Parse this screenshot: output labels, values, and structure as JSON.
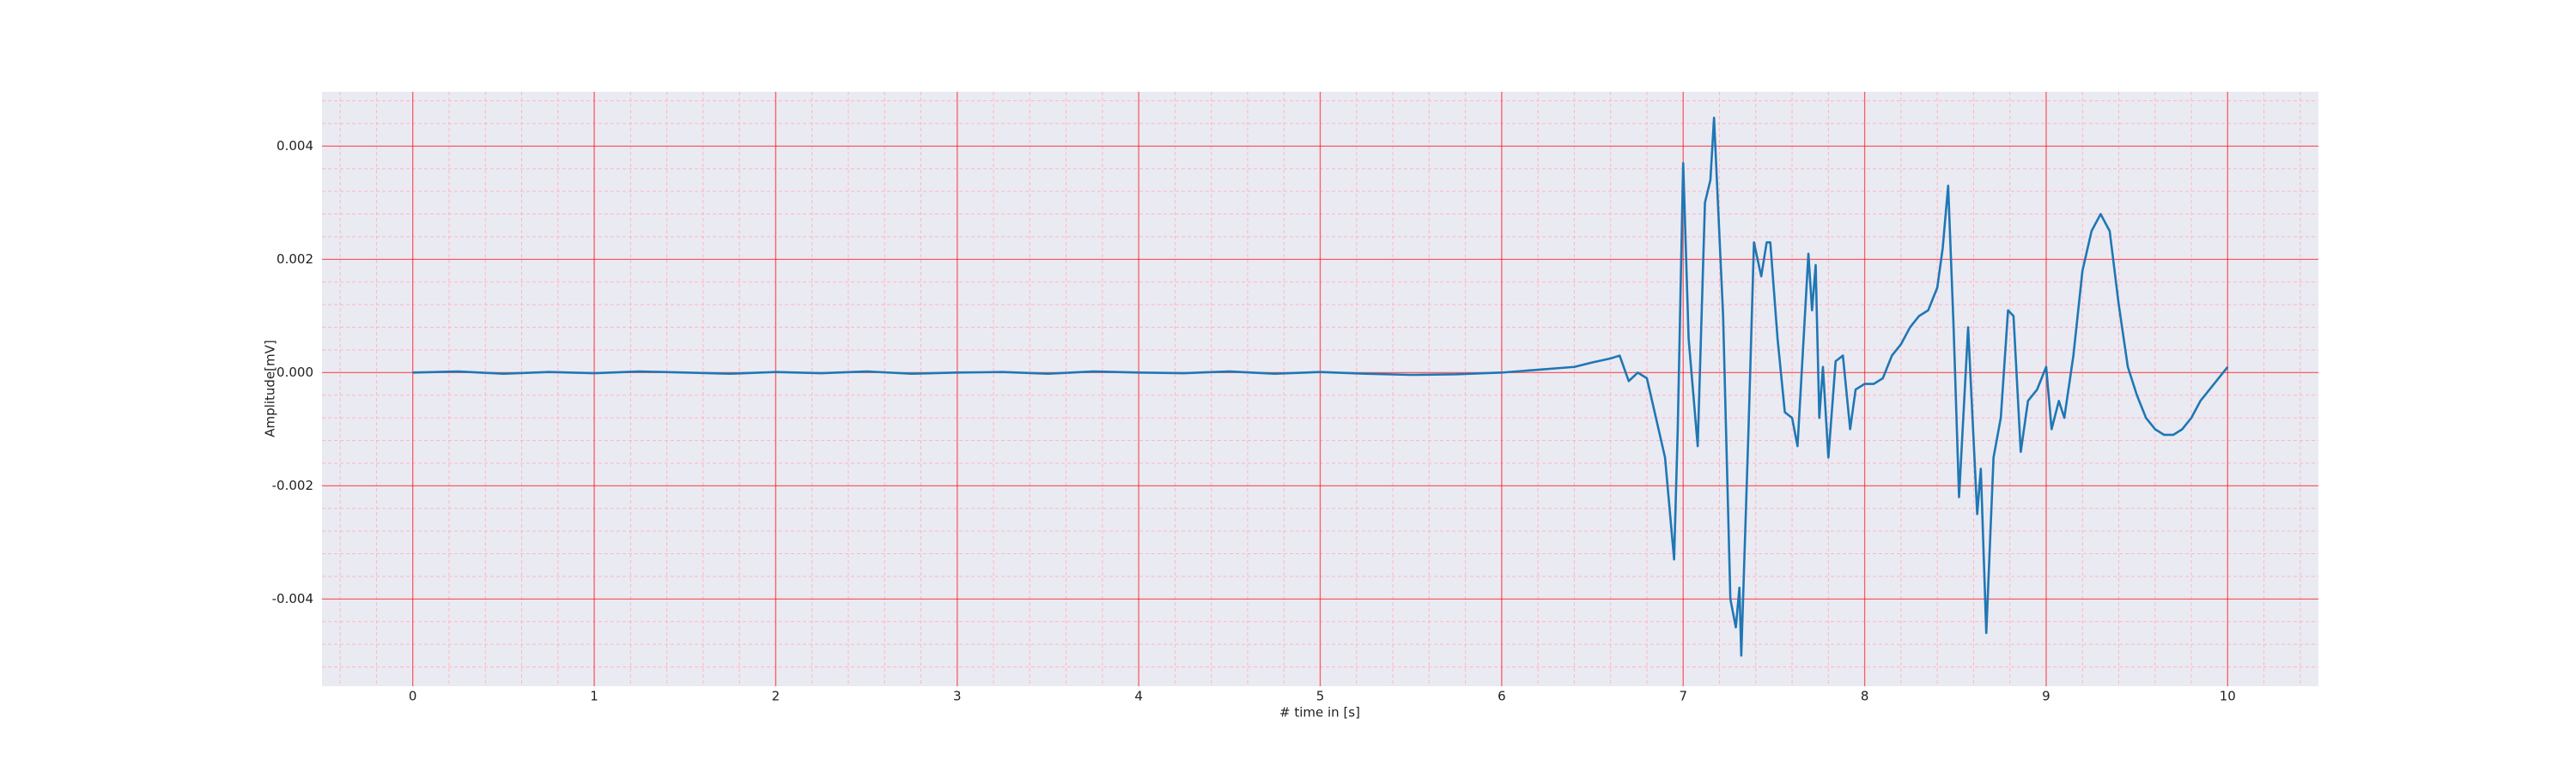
{
  "chart_data": {
    "type": "line",
    "xlabel": "# time in [s]",
    "ylabel": "Amplitude[mV]",
    "x": [
      0,
      0.25,
      0.5,
      0.75,
      1,
      1.25,
      1.5,
      1.75,
      2,
      2.25,
      2.5,
      2.75,
      3,
      3.25,
      3.5,
      3.75,
      4,
      4.25,
      4.5,
      4.75,
      5,
      5.25,
      5.5,
      5.75,
      6,
      6.2,
      6.4,
      6.5,
      6.6,
      6.65,
      6.7,
      6.75,
      6.8,
      6.85,
      6.9,
      6.95,
      6.97,
      7.0,
      7.03,
      7.08,
      7.12,
      7.15,
      7.17,
      7.22,
      7.26,
      7.29,
      7.31,
      7.32,
      7.36,
      7.39,
      7.43,
      7.46,
      7.48,
      7.52,
      7.56,
      7.6,
      7.63,
      7.69,
      7.71,
      7.73,
      7.75,
      7.77,
      7.8,
      7.84,
      7.88,
      7.92,
      7.95,
      8.0,
      8.05,
      8.1,
      8.15,
      8.2,
      8.25,
      8.3,
      8.35,
      8.4,
      8.43,
      8.46,
      8.49,
      8.52,
      8.57,
      8.62,
      8.64,
      8.67,
      8.71,
      8.75,
      8.79,
      8.82,
      8.86,
      8.9,
      8.95,
      9.0,
      9.03,
      9.07,
      9.1,
      9.15,
      9.2,
      9.25,
      9.3,
      9.35,
      9.4,
      9.45,
      9.5,
      9.55,
      9.6,
      9.65,
      9.7,
      9.75,
      9.8,
      9.85,
      9.9,
      9.95,
      10.0
    ],
    "series": [
      {
        "color": "#1f77b4",
        "values": [
          0,
          2e-05,
          -2e-05,
          1e-05,
          -1e-05,
          2e-05,
          0,
          -2e-05,
          1e-05,
          -1e-05,
          2e-05,
          -2e-05,
          0,
          1e-05,
          -2e-05,
          2e-05,
          0,
          -1e-05,
          2e-05,
          -2e-05,
          1e-05,
          -2e-05,
          -4e-05,
          -3e-05,
          0,
          5e-05,
          0.0001,
          0.00018,
          0.00025,
          0.0003,
          -0.00015,
          0,
          -0.0001,
          -0.0008,
          -0.0015,
          -0.0033,
          -0.001,
          0.0037,
          0.0006,
          -0.0013,
          0.003,
          0.0034,
          0.0045,
          0.001,
          -0.004,
          -0.0045,
          -0.0038,
          -0.005,
          -0.001,
          0.0023,
          0.0017,
          0.0023,
          0.0023,
          0.0006,
          -0.0007,
          -0.0008,
          -0.0013,
          0.0021,
          0.0011,
          0.0019,
          -0.0008,
          0.0001,
          -0.0015,
          0.0002,
          0.0003,
          -0.001,
          -0.0003,
          -0.0002,
          -0.0002,
          -0.0001,
          0.0003,
          0.0005,
          0.0008,
          0.001,
          0.0011,
          0.0015,
          0.0022,
          0.0033,
          0.0008,
          -0.0022,
          0.0008,
          -0.0025,
          -0.0017,
          -0.0046,
          -0.0015,
          -0.0008,
          0.0011,
          0.001,
          -0.0014,
          -0.0005,
          -0.0003,
          0.0001,
          -0.001,
          -0.0005,
          -0.0008,
          0.0003,
          0.0018,
          0.0025,
          0.0028,
          0.0025,
          0.0012,
          0.0001,
          -0.0004,
          -0.0008,
          -0.001,
          -0.0011,
          -0.0011,
          -0.001,
          -0.0008,
          -0.0005,
          -0.0003,
          -0.0001,
          0.0001
        ]
      }
    ],
    "xlim": [
      -0.5,
      10.5
    ],
    "ylim": [
      -0.00554,
      0.00496
    ],
    "xticks": [
      0,
      1,
      2,
      3,
      4,
      5,
      6,
      7,
      8,
      9,
      10
    ],
    "yticks": [
      -0.004,
      -0.002,
      {
        "value": 0,
        "label": "0.000"
      },
      0.002,
      0.004
    ],
    "xminorticks": [
      -0.4,
      -0.2,
      0.2,
      0.4,
      0.6,
      0.8,
      1.2,
      1.4,
      1.6,
      1.8,
      2.2,
      2.4,
      2.6,
      2.8,
      3.2,
      3.4,
      3.6,
      3.8,
      4.2,
      4.4,
      4.6,
      4.8,
      5.2,
      5.4,
      5.6,
      5.8,
      6.2,
      6.4,
      6.6,
      6.8,
      7.2,
      7.4,
      7.6,
      7.8,
      8.2,
      8.4,
      8.6,
      8.8,
      9.2,
      9.4,
      9.6,
      9.8,
      10.2,
      10.4
    ],
    "yminorticks": [
      -0.0052,
      -0.0048,
      -0.0044,
      -0.0036,
      -0.0032,
      -0.0028,
      -0.0024,
      -0.0016,
      -0.0012,
      -0.0008,
      -0.0004,
      0.0004,
      0.0008,
      0.0012,
      0.0016,
      0.0024,
      0.0028,
      0.0032,
      0.0036,
      0.0044,
      0.0048
    ],
    "grid": true,
    "grid_color": "#ff0000",
    "minor_grid_color": "#ffb6c1",
    "background": "#eaeaf2"
  }
}
